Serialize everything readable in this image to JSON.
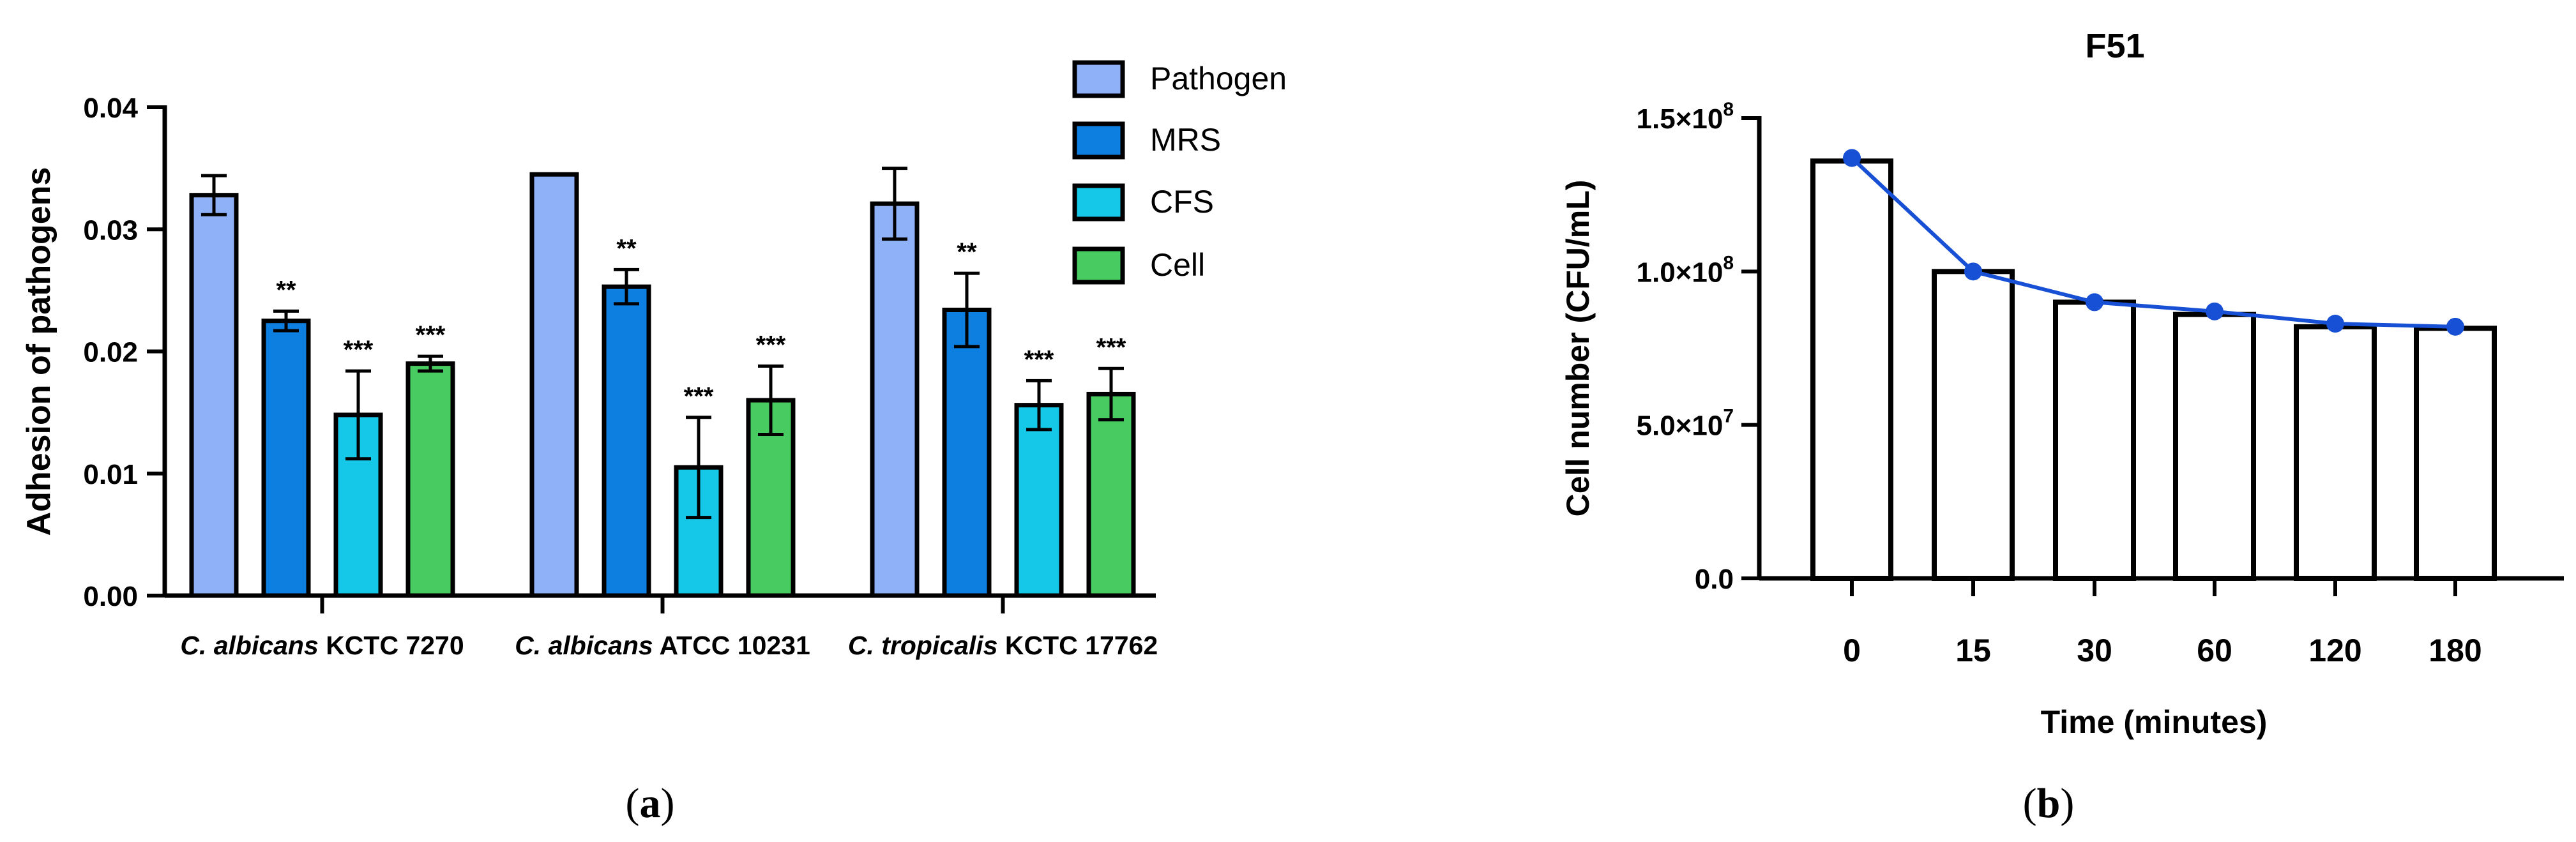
{
  "colors": {
    "pathogen": "#8fb1f7",
    "mrs": "#0d7fe0",
    "cfs": "#16c8e8",
    "cell": "#48cc62",
    "line": "#1750d4",
    "axis": "#000000"
  },
  "panel_a": {
    "label_open": "(",
    "label_letter": "a",
    "label_close": ")"
  },
  "panel_b": {
    "label_open": "(",
    "label_letter": "b",
    "label_close": ")"
  },
  "chart_data": [
    {
      "id": "a",
      "type": "bar",
      "title": "",
      "xlabel": "",
      "ylabel": "Adhesion of  pathogens",
      "ylim": [
        0,
        0.04
      ],
      "yticks": [
        "0.00",
        "0.01",
        "0.02",
        "0.03",
        "0.04"
      ],
      "ytick_values": [
        0,
        0.01,
        0.02,
        0.03,
        0.04
      ],
      "categories": [
        {
          "italic": "C. albicans",
          "rest": " KCTC 7270"
        },
        {
          "italic": "C. albicans",
          "rest": " ATCC 10231"
        },
        {
          "italic": "C. tropicalis",
          "rest": " KCTC 17762"
        }
      ],
      "legend_position": "top-right",
      "series": [
        {
          "name": "Pathogen",
          "color_key": "pathogen",
          "values": [
            0.0328,
            0.0345,
            0.0321
          ],
          "errors": [
            0.0016,
            0.0,
            0.0029
          ],
          "sig": [
            "",
            "",
            ""
          ]
        },
        {
          "name": "MRS",
          "color_key": "mrs",
          "values": [
            0.0225,
            0.0253,
            0.0234
          ],
          "errors": [
            0.0008,
            0.0014,
            0.003
          ],
          "sig": [
            "**",
            "**",
            "**"
          ]
        },
        {
          "name": "CFS",
          "color_key": "cfs",
          "values": [
            0.0148,
            0.0105,
            0.0156
          ],
          "errors": [
            0.0036,
            0.0041,
            0.002
          ],
          "sig": [
            "***",
            "***",
            "***"
          ]
        },
        {
          "name": "Cell",
          "color_key": "cell",
          "values": [
            0.019,
            0.016,
            0.0165
          ],
          "errors": [
            0.0006,
            0.0028,
            0.0021
          ],
          "sig": [
            "***",
            "***",
            "***"
          ]
        }
      ]
    },
    {
      "id": "b",
      "type": "bar",
      "overlay": "line",
      "title": "F51",
      "xlabel": "Time (minutes)",
      "ylabel": "Cell number (CFU/mL)",
      "ylim": [
        0,
        150000000
      ],
      "ytick_values": [
        0,
        50000000,
        100000000,
        150000000
      ],
      "yticks": [
        {
          "mant": "0.0",
          "exp": ""
        },
        {
          "mant": "5.0×10",
          "exp": "7"
        },
        {
          "mant": "1.0×10",
          "exp": "8"
        },
        {
          "mant": "1.5×10",
          "exp": "8"
        }
      ],
      "categories": [
        "0",
        "15",
        "30",
        "60",
        "120",
        "180"
      ],
      "values": [
        136000000,
        100000000,
        90000000,
        86000000,
        82000000,
        81500000
      ],
      "line_values": [
        137000000,
        100000000,
        90000000,
        87000000,
        83000000,
        82000000
      ]
    }
  ]
}
